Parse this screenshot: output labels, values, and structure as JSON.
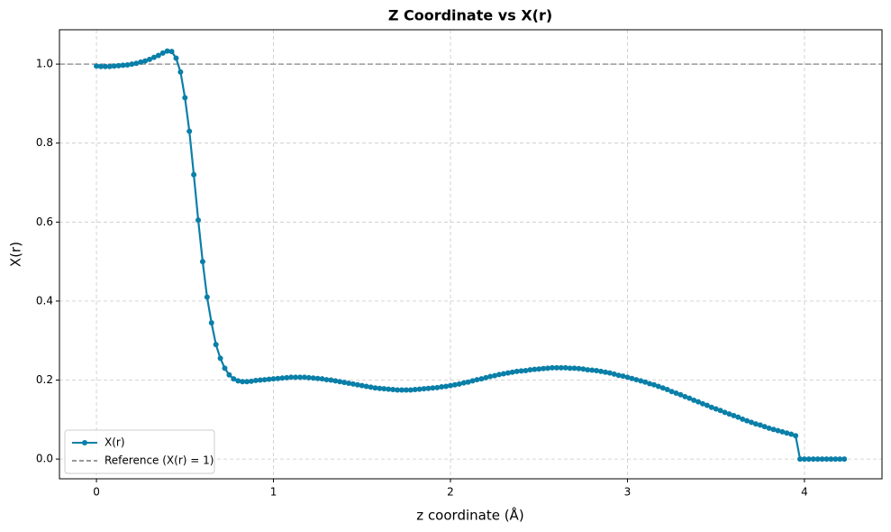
{
  "chart_data": {
    "type": "line",
    "title": "Z Coordinate vs X(r)",
    "xlabel": "z coordinate (Å)",
    "ylabel": "X(r)",
    "x": [
      0,
      0.025,
      0.05,
      0.075,
      0.1,
      0.125,
      0.15,
      0.175,
      0.2,
      0.225,
      0.25,
      0.275,
      0.3,
      0.325,
      0.35,
      0.375,
      0.4,
      0.425,
      0.45,
      0.475,
      0.5,
      0.525,
      0.55,
      0.575,
      0.6,
      0.625,
      0.65,
      0.675,
      0.7,
      0.725,
      0.75,
      0.775,
      0.8,
      0.825,
      0.85,
      0.875,
      0.9,
      0.925,
      0.95,
      0.975,
      1,
      1.025,
      1.05,
      1.075,
      1.1,
      1.125,
      1.15,
      1.175,
      1.2,
      1.225,
      1.25,
      1.275,
      1.3,
      1.325,
      1.35,
      1.375,
      1.4,
      1.425,
      1.45,
      1.475,
      1.5,
      1.525,
      1.55,
      1.575,
      1.6,
      1.625,
      1.65,
      1.675,
      1.7,
      1.725,
      1.75,
      1.775,
      1.8,
      1.825,
      1.85,
      1.875,
      1.9,
      1.925,
      1.95,
      1.975,
      2,
      2.025,
      2.05,
      2.075,
      2.1,
      2.125,
      2.15,
      2.175,
      2.2,
      2.225,
      2.25,
      2.275,
      2.3,
      2.325,
      2.35,
      2.375,
      2.4,
      2.425,
      2.45,
      2.475,
      2.5,
      2.525,
      2.55,
      2.575,
      2.6,
      2.625,
      2.65,
      2.675,
      2.7,
      2.725,
      2.75,
      2.775,
      2.8,
      2.825,
      2.85,
      2.875,
      2.9,
      2.925,
      2.95,
      2.975,
      3,
      3.025,
      3.05,
      3.075,
      3.1,
      3.125,
      3.15,
      3.175,
      3.2,
      3.225,
      3.25,
      3.275,
      3.3,
      3.325,
      3.35,
      3.375,
      3.4,
      3.425,
      3.45,
      3.475,
      3.5,
      3.525,
      3.55,
      3.575,
      3.6,
      3.625,
      3.65,
      3.675,
      3.7,
      3.725,
      3.75,
      3.775,
      3.8,
      3.825,
      3.85,
      3.875,
      3.9,
      3.925,
      3.95,
      3.975,
      4,
      4.025,
      4.05,
      4.075,
      4.1,
      4.125,
      4.15,
      4.175,
      4.2,
      4.225
    ],
    "series": [
      {
        "name": "X(r)",
        "color": "#0a7fa8",
        "values": [
          0.995,
          0.994,
          0.994,
          0.994,
          0.995,
          0.996,
          0.997,
          0.998,
          1.0,
          1.002,
          1.005,
          1.008,
          1.012,
          1.017,
          1.022,
          1.028,
          1.033,
          1.032,
          1.015,
          0.98,
          0.915,
          0.83,
          0.72,
          0.605,
          0.5,
          0.41,
          0.345,
          0.29,
          0.255,
          0.23,
          0.213,
          0.203,
          0.198,
          0.196,
          0.196,
          0.197,
          0.199,
          0.2,
          0.201,
          0.202,
          0.203,
          0.204,
          0.205,
          0.206,
          0.207,
          0.207,
          0.207,
          0.207,
          0.206,
          0.205,
          0.204,
          0.203,
          0.201,
          0.2,
          0.198,
          0.196,
          0.194,
          0.192,
          0.19,
          0.188,
          0.186,
          0.184,
          0.182,
          0.18,
          0.179,
          0.178,
          0.177,
          0.176,
          0.175,
          0.175,
          0.175,
          0.175,
          0.176,
          0.177,
          0.178,
          0.179,
          0.18,
          0.181,
          0.183,
          0.184,
          0.186,
          0.188,
          0.19,
          0.193,
          0.195,
          0.198,
          0.201,
          0.203,
          0.206,
          0.209,
          0.211,
          0.214,
          0.216,
          0.218,
          0.22,
          0.222,
          0.223,
          0.224,
          0.226,
          0.227,
          0.228,
          0.229,
          0.23,
          0.231,
          0.231,
          0.231,
          0.231,
          0.23,
          0.23,
          0.229,
          0.228,
          0.226,
          0.225,
          0.224,
          0.222,
          0.22,
          0.218,
          0.215,
          0.212,
          0.21,
          0.207,
          0.204,
          0.201,
          0.198,
          0.195,
          0.191,
          0.188,
          0.184,
          0.18,
          0.176,
          0.171,
          0.167,
          0.163,
          0.158,
          0.154,
          0.149,
          0.145,
          0.14,
          0.136,
          0.131,
          0.127,
          0.123,
          0.118,
          0.114,
          0.11,
          0.106,
          0.101,
          0.097,
          0.093,
          0.089,
          0.086,
          0.082,
          0.078,
          0.075,
          0.072,
          0.069,
          0.066,
          0.063,
          0.059,
          0,
          0,
          0,
          0,
          0,
          0,
          0,
          0,
          0,
          0,
          0
        ]
      }
    ],
    "reference_line": {
      "name": "Reference (X(r) = 1)",
      "y": 1,
      "color": "#999999"
    },
    "xlim": [
      -0.209,
      4.438
    ],
    "ylim": [
      -0.05,
      1.087
    ],
    "xticks": [
      0,
      1,
      2,
      3,
      4
    ],
    "yticks": [
      {
        "value": 0,
        "label": "0.0"
      },
      0.2,
      0.4,
      0.6,
      0.8,
      {
        "value": 1,
        "label": "1.0"
      }
    ],
    "grid": true,
    "legend": "lower left"
  }
}
